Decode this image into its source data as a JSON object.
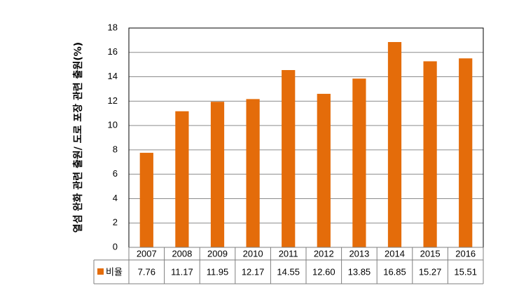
{
  "chart_data": {
    "type": "bar",
    "categories": [
      "2007",
      "2008",
      "2009",
      "2010",
      "2011",
      "2012",
      "2013",
      "2014",
      "2015",
      "2016"
    ],
    "series": [
      {
        "name": "비율",
        "values": [
          7.76,
          11.17,
          11.95,
          12.17,
          14.55,
          12.6,
          13.85,
          16.85,
          15.27,
          15.51
        ],
        "value_labels": [
          "7.76",
          "11.17",
          "11.95",
          "12.17",
          "14.55",
          "12.60",
          "13.85",
          "16.85",
          "15.27",
          "15.51"
        ],
        "color": "#E46C0A"
      }
    ],
    "title": "",
    "xlabel": "",
    "ylabel": "열섬 완화 관련 출원/ 도로 포장 관련 출원(%)",
    "ylim": [
      0,
      18
    ],
    "yticks": [
      0,
      2,
      4,
      6,
      8,
      10,
      12,
      14,
      16,
      18
    ],
    "grid": true,
    "legend": "data-table",
    "data_table": true
  }
}
